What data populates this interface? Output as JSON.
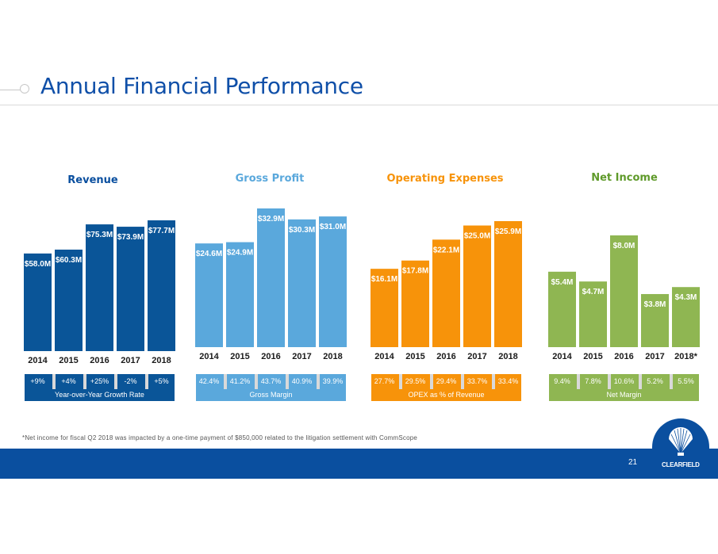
{
  "header": {
    "title": "Annual Financial Performance"
  },
  "footnote": "*Net income for fiscal Q2 2018 was impacted by a one-time payment of $850,000 related to the litigation settlement with CommScope",
  "footer": {
    "page_number": "21",
    "logo_text": "CLEARFIELD"
  },
  "colors": {
    "revenue": "#0a5598",
    "gross_profit": "#5aa8dc",
    "opex": "#f7930a",
    "net_income": "#8fb652",
    "revenue_title": "#0a4f9f",
    "gross_profit_title": "#5aa8dc",
    "opex_title": "#f7930a",
    "net_income_title": "#5f9a2a",
    "separator": "#d9d9d9"
  },
  "chart_data": [
    {
      "type": "bar",
      "title": "Revenue",
      "categories": [
        "2014",
        "2015",
        "2016",
        "2017",
        "2018"
      ],
      "values": [
        58.0,
        60.3,
        75.3,
        73.9,
        77.7
      ],
      "labels": [
        "$58.0M",
        "$60.3M",
        "$75.3M",
        "$73.9M",
        "$77.7M"
      ],
      "unit": "$M",
      "ylim": [
        0,
        100
      ],
      "grid": false,
      "strip_values": [
        "+9%",
        "+4%",
        "+25%",
        "-2%",
        "+5%"
      ],
      "strip_label": "Year-over-Year Growth Rate"
    },
    {
      "type": "bar",
      "title": "Gross Profit",
      "categories": [
        "2014",
        "2015",
        "2016",
        "2017",
        "2018"
      ],
      "values": [
        24.6,
        24.9,
        32.9,
        30.3,
        31.0
      ],
      "labels": [
        "$24.6M",
        "$24.9M",
        "$32.9M",
        "$30.3M",
        "$31.0M"
      ],
      "unit": "$M",
      "ylim": [
        0,
        36
      ],
      "grid": false,
      "strip_values": [
        "42.4%",
        "41.2%",
        "43.7%",
        "40.9%",
        "39.9%"
      ],
      "strip_label": "Gross Margin"
    },
    {
      "type": "bar",
      "title": "Operating Expenses",
      "categories": [
        "2014",
        "2015",
        "2016",
        "2017",
        "2018"
      ],
      "values": [
        16.1,
        17.8,
        22.1,
        25.0,
        25.9
      ],
      "labels": [
        "$16.1M",
        "$17.8M",
        "$22.1M",
        "$25.0M",
        "$25.9M"
      ],
      "unit": "$M",
      "ylim": [
        0,
        36
      ],
      "grid": false,
      "strip_values": [
        "27.7%",
        "29.5%",
        "29.4%",
        "33.7%",
        "33.4%"
      ],
      "strip_label": "OPEX as % of Revenue"
    },
    {
      "type": "bar",
      "title": "Net Income",
      "categories": [
        "2014",
        "2015",
        "2016",
        "2017",
        "2018*"
      ],
      "values": [
        5.4,
        4.7,
        8.0,
        3.8,
        4.3
      ],
      "labels": [
        "$5.4M",
        "$4.7M",
        "$8.0M",
        "$3.8M",
        "$4.3M"
      ],
      "unit": "$M",
      "ylim": [
        0,
        12
      ],
      "grid": false,
      "strip_values": [
        "9.4%",
        "7.8%",
        "10.6%",
        "5.2%",
        "5.5%"
      ],
      "strip_label": "Net Margin"
    }
  ]
}
